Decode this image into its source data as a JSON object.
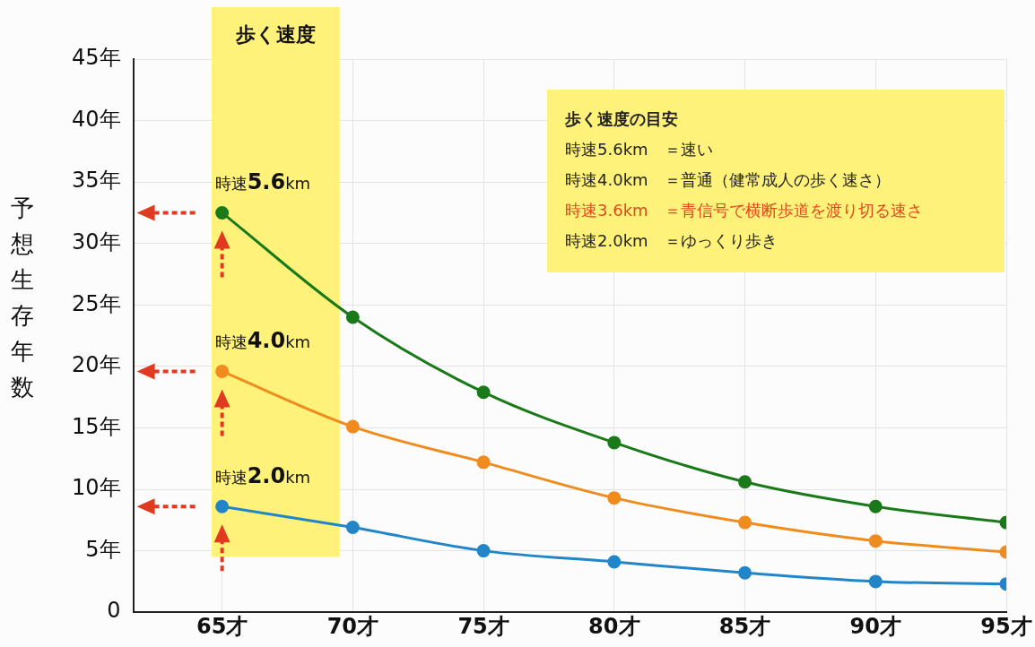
{
  "chart_data": {
    "type": "line",
    "ylabel": "予想生存年数",
    "x": [
      65,
      70,
      75,
      80,
      85,
      90,
      95
    ],
    "series": [
      {
        "name": "時速5.6km",
        "color": "#1a7a1a",
        "values": [
          32.5,
          24.0,
          17.9,
          13.8,
          10.6,
          8.6,
          7.3
        ]
      },
      {
        "name": "時速4.0km",
        "color": "#f08c1e",
        "values": [
          19.6,
          15.1,
          12.2,
          9.3,
          7.3,
          5.8,
          4.9
        ]
      },
      {
        "name": "時速2.0km",
        "color": "#2285c8",
        "values": [
          8.6,
          6.9,
          5.0,
          4.1,
          3.2,
          2.5,
          2.3
        ]
      }
    ],
    "xlim": [
      61.6,
      95
    ],
    "xticks": [
      {
        "value": 65,
        "label": "65才"
      },
      {
        "value": 70,
        "label": "70才"
      },
      {
        "value": 75,
        "label": "75才"
      },
      {
        "value": 80,
        "label": "80才"
      },
      {
        "value": 85,
        "label": "85才"
      },
      {
        "value": 90,
        "label": "90才"
      },
      {
        "value": 95,
        "label": "95才"
      }
    ],
    "ylim": [
      0,
      45
    ],
    "yticks": [
      0,
      {
        "value": 5,
        "label": "5年"
      },
      {
        "value": 10,
        "label": "10年"
      },
      {
        "value": 15,
        "label": "15年"
      },
      {
        "value": 20,
        "label": "20年"
      },
      {
        "value": 25,
        "label": "25年"
      },
      {
        "value": 30,
        "label": "30年"
      },
      {
        "value": 35,
        "label": "35年"
      },
      {
        "value": 40,
        "label": "40年"
      },
      {
        "value": 45,
        "label": "45年"
      }
    ],
    "bands": [
      {
        "axis": "x",
        "from": 64.6,
        "to": 69.5,
        "label": "歩く速度",
        "color": "#fff27a"
      }
    ],
    "annotations": [
      "歩く速度の目安",
      "時速5.6km　＝速い",
      "時速4.0km　＝普通（健常成人の歩く速さ）",
      "時速3.6km　＝青信号で横断歩道を渡り切る速さ",
      "時速2.0km　＝ゆっくり歩き"
    ],
    "grid": true,
    "legend": false,
    "marker": "circle",
    "line_style": "solid"
  }
}
